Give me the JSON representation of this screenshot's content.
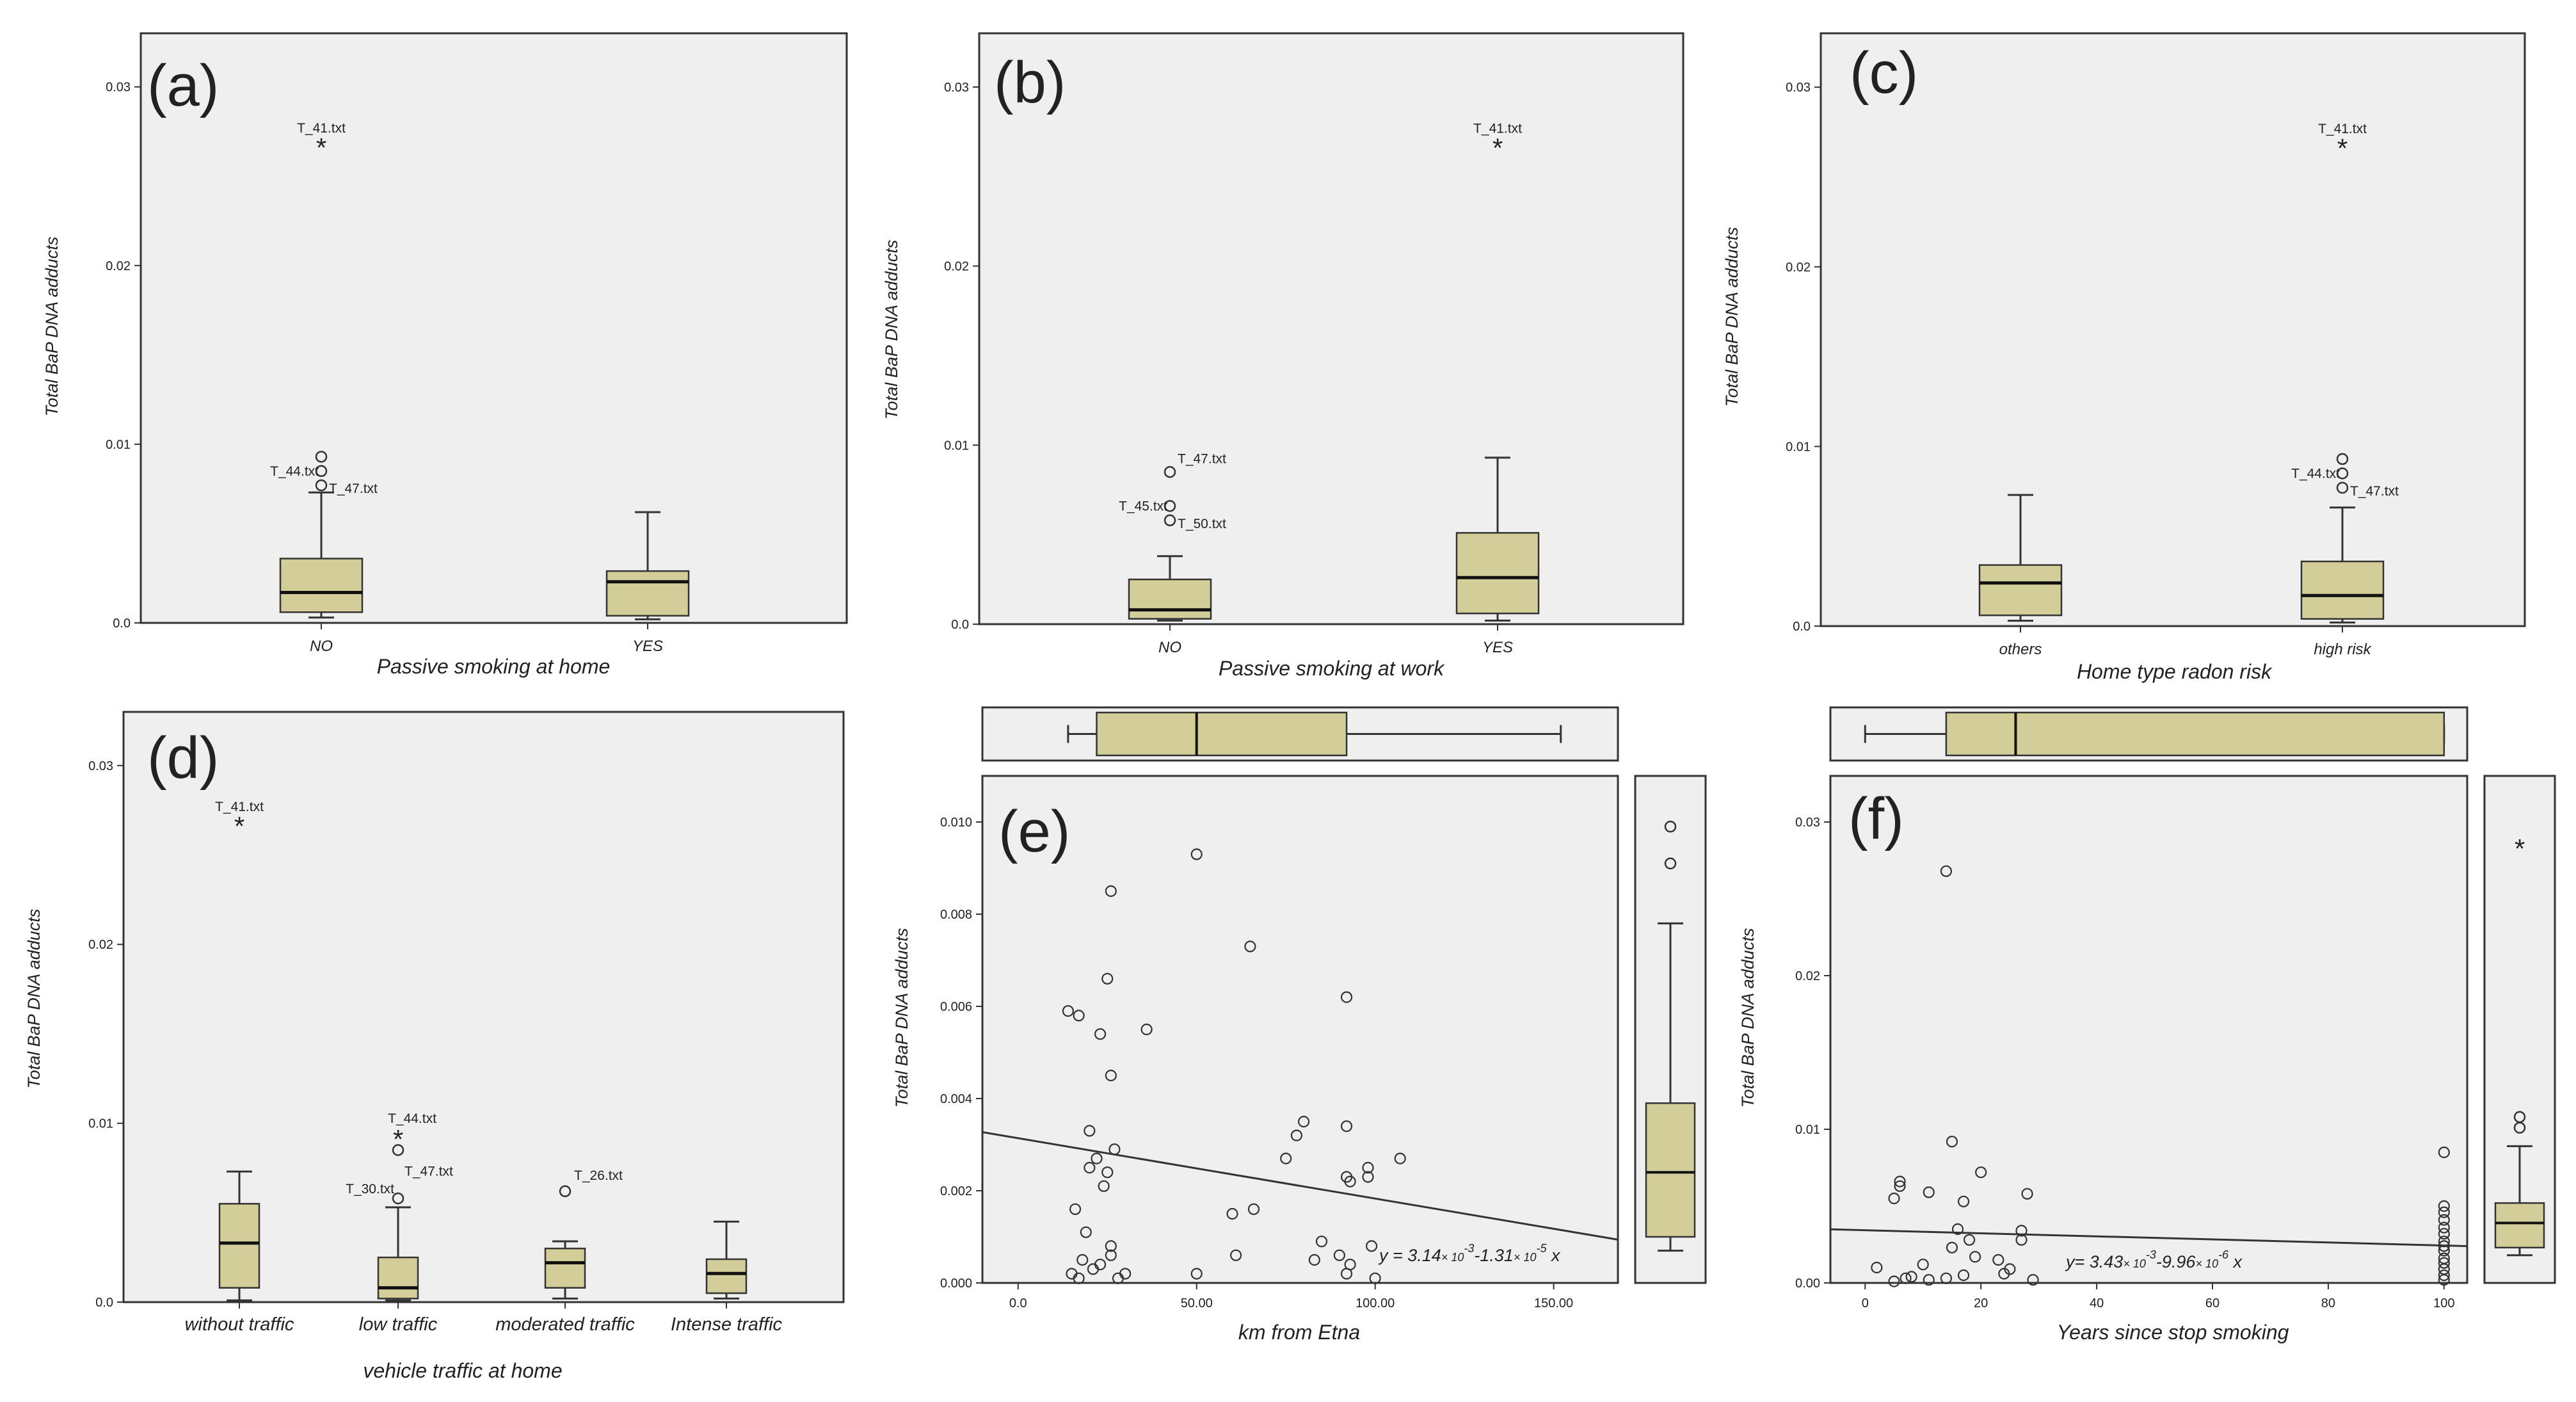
{
  "colors": {
    "plot_bg": "#efefef",
    "box_fill": "#d3cd99",
    "line": "#333333"
  },
  "chart_data": [
    {
      "panel": "(a)",
      "type": "box",
      "xlabel": "Passive smoking at home",
      "ylabel": "Total BaP DNA adducts",
      "ylim": [
        0,
        0.033
      ],
      "yticks": [
        "0.0",
        "0.01",
        "0.02",
        "0.03"
      ],
      "ytickvals": [
        0,
        0.01,
        0.02,
        0.03
      ],
      "categories": [
        "NO",
        "YES"
      ],
      "boxes": [
        {
          "min": 0.0003,
          "q1": 0.0006,
          "median": 0.0017,
          "q3": 0.0036,
          "max": 0.0073
        },
        {
          "min": 0.0002,
          "q1": 0.0004,
          "median": 0.0023,
          "q3": 0.0029,
          "max": 0.0062
        }
      ],
      "outliers": [
        {
          "cat": 0,
          "value": 0.0268,
          "kind": "extreme",
          "label": "T_41.txt"
        },
        {
          "cat": 0,
          "value": 0.0093,
          "kind": "outlier",
          "label": ""
        },
        {
          "cat": 0,
          "value": 0.0085,
          "kind": "outlier",
          "label": "T_44.txt"
        },
        {
          "cat": 0,
          "value": 0.0077,
          "kind": "outlier",
          "label": "T_47.txt"
        }
      ]
    },
    {
      "panel": "(b)",
      "type": "box",
      "xlabel": "Passive smoking at work",
      "ylabel": "Total BaP DNA adducts",
      "ylim": [
        0,
        0.033
      ],
      "yticks": [
        "0.0",
        "0.01",
        "0.02",
        "0.03"
      ],
      "ytickvals": [
        0,
        0.01,
        0.02,
        0.03
      ],
      "categories": [
        "NO",
        "YES"
      ],
      "boxes": [
        {
          "min": 0.0002,
          "q1": 0.0003,
          "median": 0.0008,
          "q3": 0.0025,
          "max": 0.0038
        },
        {
          "min": 0.0002,
          "q1": 0.0006,
          "median": 0.0026,
          "q3": 0.0051,
          "max": 0.0093
        }
      ],
      "outliers": [
        {
          "cat": 1,
          "value": 0.0268,
          "kind": "extreme",
          "label": "T_41.txt"
        },
        {
          "cat": 0,
          "value": 0.0085,
          "kind": "outlier",
          "label": "T_47.txt"
        },
        {
          "cat": 0,
          "value": 0.0066,
          "kind": "outlier",
          "label": "T_45.txt"
        },
        {
          "cat": 0,
          "value": 0.0058,
          "kind": "outlier",
          "label": "T_50.txt"
        }
      ]
    },
    {
      "panel": "(c)",
      "type": "box",
      "xlabel": "Home type radon risk",
      "ylabel": "Total BaP DNA adducts",
      "ylim": [
        0,
        0.033
      ],
      "yticks": [
        "0.0",
        "0.01",
        "0.02",
        "0.03"
      ],
      "ytickvals": [
        0,
        0.01,
        0.02,
        0.03
      ],
      "categories": [
        "others",
        "high risk"
      ],
      "boxes": [
        {
          "min": 0.0003,
          "q1": 0.0006,
          "median": 0.0024,
          "q3": 0.0034,
          "max": 0.0073
        },
        {
          "min": 0.0002,
          "q1": 0.0004,
          "median": 0.0017,
          "q3": 0.0036,
          "max": 0.0066
        }
      ],
      "outliers": [
        {
          "cat": 1,
          "value": 0.0268,
          "kind": "extreme",
          "label": "T_41.txt"
        },
        {
          "cat": 1,
          "value": 0.0093,
          "kind": "outlier",
          "label": ""
        },
        {
          "cat": 1,
          "value": 0.0085,
          "kind": "outlier",
          "label": "T_44.txt"
        },
        {
          "cat": 1,
          "value": 0.0077,
          "kind": "outlier",
          "label": "T_47.txt"
        }
      ]
    },
    {
      "panel": "(d)",
      "type": "box",
      "xlabel": "vehicle traffic at home",
      "ylabel": "Total BaP DNA adducts",
      "ylim": [
        0,
        0.033
      ],
      "yticks": [
        "0.0",
        "0.01",
        "0.02",
        "0.03"
      ],
      "ytickvals": [
        0,
        0.01,
        0.02,
        0.03
      ],
      "categories": [
        "without traffic",
        "low traffic",
        "moderated traffic",
        "Intense traffic"
      ],
      "boxes": [
        {
          "min": 0.0001,
          "q1": 0.0008,
          "median": 0.0033,
          "q3": 0.0055,
          "max": 0.0073
        },
        {
          "min": 0.0001,
          "q1": 0.0002,
          "median": 0.0008,
          "q3": 0.0025,
          "max": 0.0053
        },
        {
          "min": 0.0002,
          "q1": 0.0008,
          "median": 0.0022,
          "q3": 0.003,
          "max": 0.0034
        },
        {
          "min": 0.0002,
          "q1": 0.0005,
          "median": 0.0016,
          "q3": 0.0024,
          "max": 0.0045
        }
      ],
      "outliers": [
        {
          "cat": 0,
          "value": 0.0268,
          "kind": "extreme",
          "label": "T_41.txt"
        },
        {
          "cat": 1,
          "value": 0.0093,
          "kind": "extreme",
          "label": "T_44.txt"
        },
        {
          "cat": 1,
          "value": 0.0085,
          "kind": "outlier",
          "label": "T_47.txt"
        },
        {
          "cat": 1,
          "value": 0.0058,
          "kind": "outlier",
          "label": "T_30.txt"
        },
        {
          "cat": 2,
          "value": 0.0062,
          "kind": "outlier",
          "label": "T_26.txt"
        }
      ]
    },
    {
      "panel": "(e)",
      "type": "scatter",
      "xlabel": "km from Etna",
      "ylabel": "Total BaP DNA adducts",
      "xlim": [
        -10,
        168
      ],
      "ylim": [
        0,
        0.011
      ],
      "xticks": [
        "0.0",
        "50.00",
        "100.00",
        "150.00"
      ],
      "xtickvals": [
        0,
        50,
        100,
        150
      ],
      "yticks": [
        "0.000",
        "0.002",
        "0.004",
        "0.006",
        "0.008",
        "0.010"
      ],
      "ytickvals": [
        0,
        0.002,
        0.004,
        0.006,
        0.008,
        0.01
      ],
      "equation": {
        "prefix": "y = 3.14",
        "m1": "× 10",
        "e1": "-3",
        "mid": "-1.31",
        "m2": "× 10",
        "e2": "-5",
        "suffix": " x"
      },
      "fit": {
        "intercept": 0.00314,
        "slope": -1.31e-05
      },
      "points": [
        [
          14,
          0.0059
        ],
        [
          17,
          0.0058
        ],
        [
          23,
          0.0054
        ],
        [
          25,
          0.0066
        ],
        [
          26,
          0.0085
        ],
        [
          36,
          0.0055
        ],
        [
          50,
          0.0093
        ],
        [
          65,
          0.0073
        ],
        [
          92,
          0.0062
        ],
        [
          26,
          0.0045
        ],
        [
          20,
          0.0033
        ],
        [
          27,
          0.0029
        ],
        [
          22,
          0.0027
        ],
        [
          20,
          0.0025
        ],
        [
          25,
          0.0024
        ],
        [
          16,
          0.0016
        ],
        [
          19,
          0.0011
        ],
        [
          24,
          0.0021
        ],
        [
          18,
          0.0005
        ],
        [
          21,
          0.0003
        ],
        [
          23,
          0.0004
        ],
        [
          17,
          0.0001
        ],
        [
          15,
          0.0002
        ],
        [
          30,
          0.0002
        ],
        [
          26,
          0.0006
        ],
        [
          26,
          0.0008
        ],
        [
          28,
          0.0001
        ],
        [
          66,
          0.0016
        ],
        [
          60,
          0.0015
        ],
        [
          50,
          0.0002
        ],
        [
          75,
          0.0027
        ],
        [
          80,
          0.0035
        ],
        [
          78,
          0.0032
        ],
        [
          92,
          0.0034
        ],
        [
          92,
          0.0023
        ],
        [
          93,
          0.0022
        ],
        [
          98,
          0.0025
        ],
        [
          98,
          0.0023
        ],
        [
          107,
          0.0027
        ],
        [
          90,
          0.0006
        ],
        [
          93,
          0.0004
        ],
        [
          92,
          0.0002
        ],
        [
          85,
          0.0009
        ],
        [
          99,
          0.0008
        ],
        [
          100,
          0.0001
        ],
        [
          83,
          0.0005
        ],
        [
          61,
          0.0006
        ]
      ],
      "top_box": {
        "min": 14,
        "q1": 22,
        "median": 50,
        "q3": 92,
        "max": 152
      },
      "side_box": {
        "min": 0.0007,
        "q1": 0.001,
        "median": 0.0024,
        "q3": 0.0039,
        "max": 0.0078,
        "outliers": [
          0.0099,
          0.0091
        ]
      }
    },
    {
      "panel": "(f)",
      "type": "scatter",
      "xlabel": "Years since stop smoking",
      "ylabel": "Total BaP DNA adducts",
      "xlim": [
        -6,
        104
      ],
      "ylim": [
        0,
        0.033
      ],
      "xticks": [
        "0",
        "20",
        "40",
        "60",
        "80",
        "100"
      ],
      "xtickvals": [
        0,
        20,
        40,
        60,
        80,
        100
      ],
      "yticks": [
        "0.00",
        "0.01",
        "0.02",
        "0.03"
      ],
      "ytickvals": [
        0,
        0.01,
        0.02,
        0.03
      ],
      "equation": {
        "prefix": "y= 3.43",
        "m1": "× 10",
        "e1": "-3",
        "mid": "-9.96",
        "m2": "× 10",
        "e2": "-6",
        "suffix": " x"
      },
      "fit": {
        "intercept": 0.00343,
        "slope": -9.96e-06
      },
      "points": [
        [
          14,
          0.0268
        ],
        [
          15,
          0.0092
        ],
        [
          20,
          0.0072
        ],
        [
          28,
          0.0058
        ],
        [
          5,
          0.0055
        ],
        [
          6,
          0.0063
        ],
        [
          6,
          0.0066
        ],
        [
          11,
          0.0059
        ],
        [
          17,
          0.0053
        ],
        [
          16,
          0.0035
        ],
        [
          18,
          0.0028
        ],
        [
          27,
          0.0034
        ],
        [
          27,
          0.0028
        ],
        [
          15,
          0.0023
        ],
        [
          19,
          0.0017
        ],
        [
          23,
          0.0015
        ],
        [
          2,
          0.001
        ],
        [
          10,
          0.0012
        ],
        [
          11,
          0.0002
        ],
        [
          7,
          0.0003
        ],
        [
          24,
          0.0006
        ],
        [
          25,
          0.0009
        ],
        [
          29,
          0.0002
        ],
        [
          8,
          0.0004
        ],
        [
          5,
          0.0001
        ],
        [
          14,
          0.0003
        ],
        [
          17,
          0.0005
        ],
        [
          100,
          0.0085
        ],
        [
          100,
          0.005
        ],
        [
          100,
          0.0046
        ],
        [
          100,
          0.0041
        ],
        [
          100,
          0.0036
        ],
        [
          100,
          0.0032
        ],
        [
          100,
          0.0027
        ],
        [
          100,
          0.0024
        ],
        [
          100,
          0.0021
        ],
        [
          100,
          0.0016
        ],
        [
          100,
          0.0013
        ],
        [
          100,
          0.0009
        ],
        [
          100,
          0.0005
        ],
        [
          100,
          0.0002
        ]
      ],
      "top_box": {
        "min": 0,
        "q1": 14,
        "median": 26,
        "q3": 100,
        "max": 100
      },
      "side_box": {
        "min": 0.0018,
        "q1": 0.0023,
        "median": 0.0039,
        "q3": 0.0052,
        "max": 0.0089,
        "outliers": [
          0.0108,
          0.0101
        ],
        "extremes": [
          0.0285
        ]
      }
    }
  ]
}
